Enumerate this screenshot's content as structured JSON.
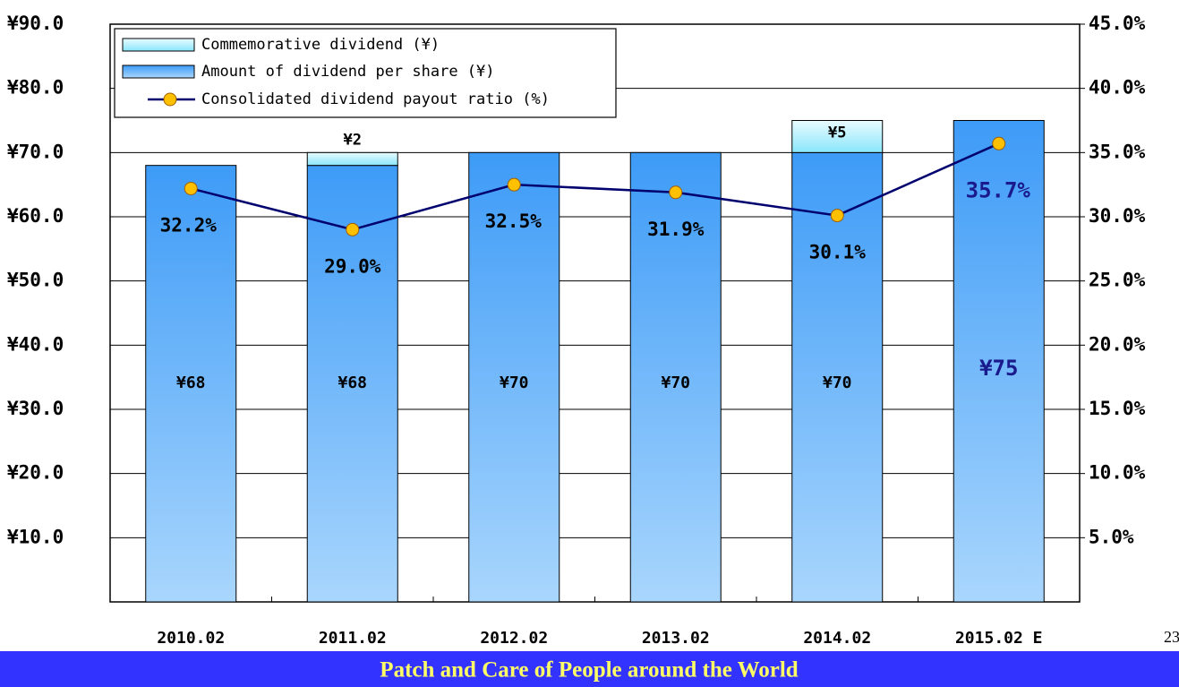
{
  "chart_data": {
    "type": "bar",
    "categories": [
      "2010.02",
      "2011.02",
      "2012.02",
      "2013.02",
      "2014.02",
      "2015.02 E"
    ],
    "series": [
      {
        "name": "Commemorative dividend (¥)",
        "color": "#8ae6fb",
        "values": [
          null,
          2,
          null,
          null,
          5,
          null
        ],
        "value_labels": [
          null,
          "¥2",
          null,
          null,
          "¥5",
          null
        ]
      },
      {
        "name": "Amount of dividend per share (¥)",
        "color": "#3d9bf7",
        "values": [
          68,
          68,
          70,
          70,
          70,
          75
        ],
        "value_labels": [
          "¥68",
          "¥68",
          "¥70",
          "¥70",
          "¥70",
          "¥75"
        ]
      },
      {
        "name": "Consolidated dividend payout ratio (%)",
        "color": "#00006e",
        "marker_color": "#ffc000",
        "axis": "y2",
        "values": [
          32.2,
          29.0,
          32.5,
          31.9,
          30.1,
          35.7
        ],
        "value_labels": [
          "32.2%",
          "29.0%",
          "32.5%",
          "31.9%",
          "30.1%",
          "35.7%"
        ]
      }
    ],
    "ylim": [
      0,
      90
    ],
    "yticks": [
      {
        "value": 10,
        "label": "¥10.0"
      },
      {
        "value": 20,
        "label": "¥20.0"
      },
      {
        "value": 30,
        "label": "¥30.0"
      },
      {
        "value": 40,
        "label": "¥40.0"
      },
      {
        "value": 50,
        "label": "¥50.0"
      },
      {
        "value": 60,
        "label": "¥60.0"
      },
      {
        "value": 70,
        "label": "¥70.0"
      },
      {
        "value": 80,
        "label": "¥80.0"
      },
      {
        "value": 90,
        "label": "¥90.0"
      }
    ],
    "y2lim": [
      0,
      45
    ],
    "y2ticks": [
      {
        "value": 5,
        "label": "5.0%"
      },
      {
        "value": 10,
        "label": "10.0%"
      },
      {
        "value": 15,
        "label": "15.0%"
      },
      {
        "value": 20,
        "label": "20.0%"
      },
      {
        "value": 25,
        "label": "25.0%"
      },
      {
        "value": 30,
        "label": "30.0%"
      },
      {
        "value": 35,
        "label": "35.0%"
      },
      {
        "value": 40,
        "label": "40.0%"
      },
      {
        "value": 45,
        "label": "45.0%"
      }
    ],
    "grid": true
  },
  "footer": {
    "slogan": "Patch and Care of People around the World",
    "page_number": "23"
  }
}
